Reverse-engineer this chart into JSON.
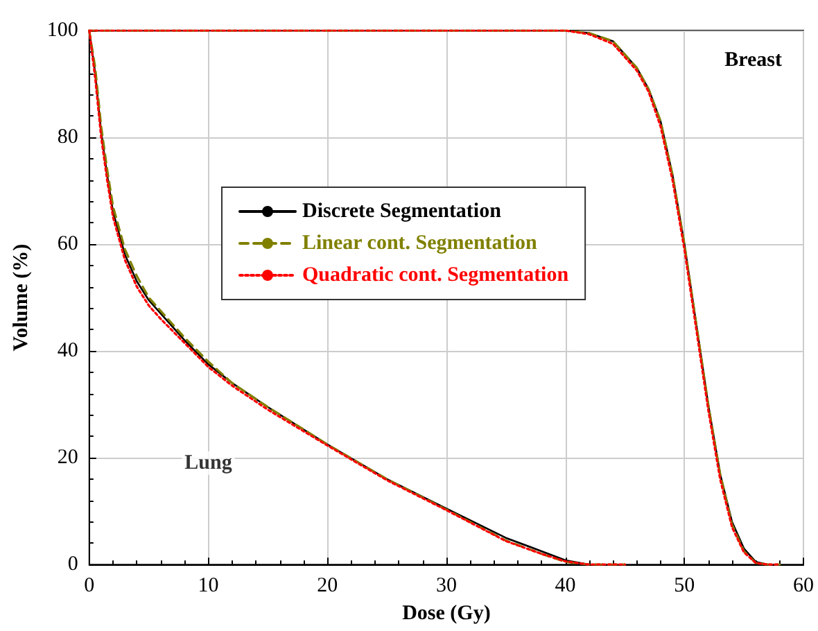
{
  "chart_data": {
    "type": "line",
    "xlabel": "Dose (Gy)",
    "ylabel": "Volume (%)",
    "xlim": [
      0,
      60
    ],
    "xticks": [
      0,
      10,
      20,
      30,
      40,
      50,
      60
    ],
    "ylim": [
      0,
      100
    ],
    "yticks": [
      0,
      20,
      40,
      60,
      80,
      100
    ],
    "grid": true,
    "legend": "center",
    "marker": "none",
    "annotations": [
      {
        "text": "Lung",
        "x": 10,
        "y": 19
      },
      "Breast"
    ],
    "series": [
      {
        "name": "Discrete Segmentation",
        "color": "#000000",
        "line_style": "solid",
        "x": [
          0,
          0.5,
          1,
          1.5,
          2,
          3,
          4,
          5,
          6,
          8,
          10,
          12,
          15,
          20,
          25,
          30,
          35,
          38,
          40,
          42,
          45
        ],
        "values": [
          100,
          92,
          81,
          73,
          66,
          58,
          53,
          49.5,
          47,
          42,
          37.5,
          34,
          29.5,
          22.5,
          16,
          10.5,
          5,
          2.5,
          0.8,
          0,
          0
        ]
      },
      {
        "name": "Linear cont. Segmentation",
        "color": "#808000",
        "line_style": "dashed",
        "x": [
          0,
          0.5,
          1,
          1.5,
          2,
          3,
          4,
          5,
          6,
          8,
          10,
          12,
          15,
          20,
          25,
          30,
          35,
          38,
          40,
          42,
          45
        ],
        "values": [
          100,
          93,
          82,
          74,
          67,
          59,
          54,
          50,
          47.5,
          42.5,
          38,
          34,
          29.5,
          22.5,
          16,
          10.3,
          4.5,
          2,
          0.5,
          0,
          0
        ]
      },
      {
        "name": "Quadratic cont. Segmentation",
        "color": "#ff0000",
        "line_style": "dotted",
        "x": [
          0,
          0.5,
          1,
          1.5,
          2,
          3,
          4,
          5,
          6,
          8,
          10,
          12,
          15,
          20,
          25,
          30,
          35,
          38,
          40,
          42,
          45
        ],
        "values": [
          100,
          91,
          80,
          72,
          65,
          57,
          52,
          48.5,
          46,
          41.5,
          37,
          33.5,
          29,
          22.3,
          15.8,
          10.2,
          4.4,
          2,
          0.6,
          0,
          0
        ]
      },
      {
        "color": "#000000",
        "line_style": "solid",
        "x": [
          0,
          40,
          42,
          44,
          46,
          47,
          48,
          49,
          50,
          51,
          52,
          53,
          54,
          55,
          56,
          57,
          58
        ],
        "values": [
          100,
          100,
          99.5,
          98,
          93,
          89,
          83,
          73,
          60,
          45,
          30,
          17,
          8,
          3,
          0.5,
          0,
          0
        ]
      },
      {
        "color": "#808000",
        "line_style": "dashed",
        "x": [
          0,
          40,
          42,
          44,
          46,
          47,
          48,
          49,
          50,
          51,
          52,
          53,
          54,
          55,
          56,
          57,
          58
        ],
        "values": [
          100,
          100,
          99.5,
          98,
          93,
          89,
          83,
          73,
          60,
          45,
          30,
          17,
          7.5,
          2.5,
          0.3,
          0,
          0
        ]
      },
      {
        "color": "#ff0000",
        "line_style": "dotted",
        "x": [
          0,
          40,
          42,
          44,
          46,
          47,
          48,
          49,
          50,
          51,
          52,
          53,
          54,
          55,
          56,
          57,
          58
        ],
        "values": [
          100,
          100,
          99.3,
          97.5,
          92.5,
          88.5,
          82,
          72,
          59,
          44,
          29,
          16,
          7,
          2.3,
          0.3,
          0,
          0
        ]
      }
    ]
  }
}
